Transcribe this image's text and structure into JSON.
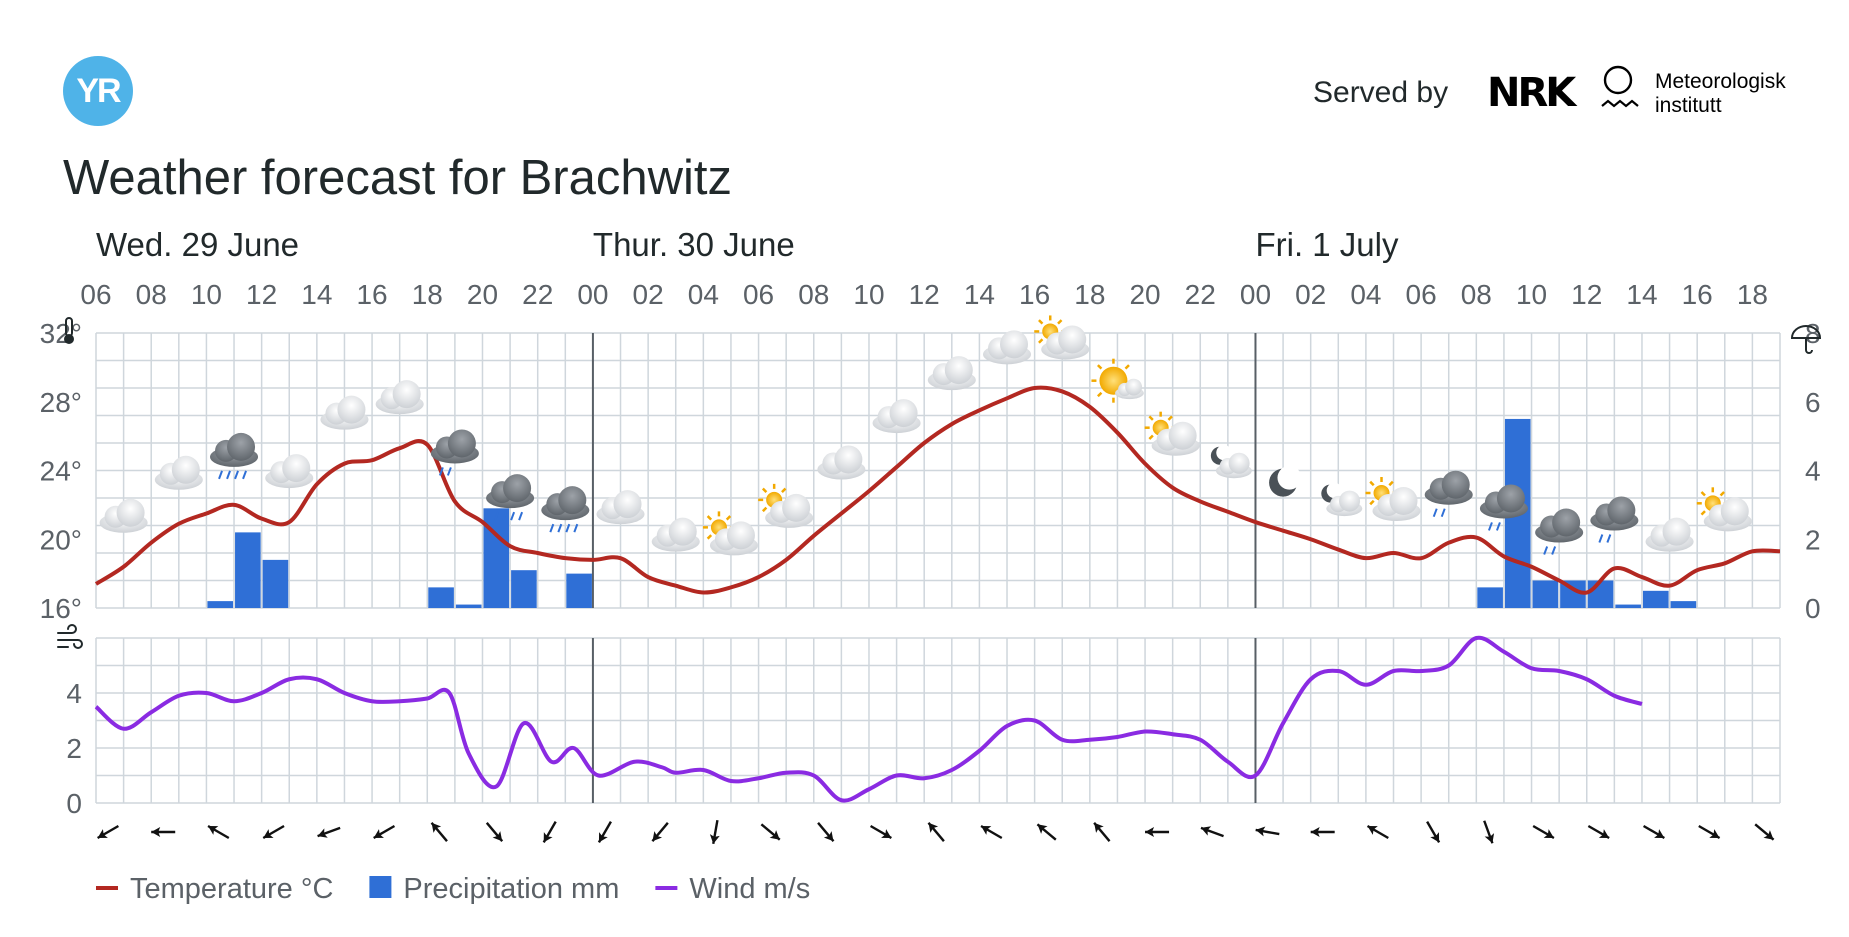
{
  "header": {
    "logo_text": "YR",
    "served_by": "Served by",
    "nrk_logo": "NRK",
    "met_name_line1": "Meteorologisk",
    "met_name_line2": "institutt",
    "title": "Weather forecast for Brachwitz"
  },
  "colors": {
    "temperature": "#b32821",
    "precipitation": "#2f6fd6",
    "wind": "#8a2be2",
    "grid": "#cfd6dc",
    "day_divider": "#585f66"
  },
  "legend": [
    {
      "name": "Temperature °C",
      "color": "#b32821",
      "shape": "line"
    },
    {
      "name": "Precipitation mm",
      "color": "#2f6fd6",
      "shape": "square"
    },
    {
      "name": "Wind m/s",
      "color": "#8a2be2",
      "shape": "line"
    }
  ],
  "chart_data": {
    "type": "line",
    "days": [
      {
        "label": "Wed. 29 June",
        "start_hour": 6
      },
      {
        "label": "Thur. 30 June",
        "start_hour": 24
      },
      {
        "label": "Fri. 1 July",
        "start_hour": 48
      }
    ],
    "x_ticks": [
      "06",
      "08",
      "10",
      "12",
      "14",
      "16",
      "18",
      "20",
      "22",
      "00",
      "02",
      "04",
      "06",
      "08",
      "10",
      "12",
      "14",
      "16",
      "18",
      "20",
      "22",
      "00",
      "02",
      "04",
      "06",
      "08",
      "10",
      "12",
      "14",
      "16",
      "18"
    ],
    "x_range_hours": [
      6,
      67
    ],
    "temperature": {
      "name": "Temperature °C",
      "ylim": [
        16,
        32
      ],
      "y_ticks": [
        "16°",
        "20°",
        "24°",
        "28°",
        "32°"
      ],
      "y_tick_values": [
        16,
        20,
        24,
        28,
        32
      ],
      "points": [
        [
          6,
          17.4
        ],
        [
          7,
          18.4
        ],
        [
          8,
          19.8
        ],
        [
          9,
          20.9
        ],
        [
          10,
          21.5
        ],
        [
          11,
          22.0
        ],
        [
          12,
          21.2
        ],
        [
          13,
          21.0
        ],
        [
          14,
          23.2
        ],
        [
          15,
          24.4
        ],
        [
          16,
          24.6
        ],
        [
          17,
          25.3
        ],
        [
          18,
          25.5
        ],
        [
          19,
          22.2
        ],
        [
          20,
          21.0
        ],
        [
          21,
          19.6
        ],
        [
          22,
          19.2
        ],
        [
          23,
          18.9
        ],
        [
          24,
          18.8
        ],
        [
          25,
          18.9
        ],
        [
          26,
          17.8
        ],
        [
          27,
          17.3
        ],
        [
          28,
          16.9
        ],
        [
          29,
          17.2
        ],
        [
          30,
          17.8
        ],
        [
          31,
          18.8
        ],
        [
          32,
          20.2
        ],
        [
          33,
          21.5
        ],
        [
          34,
          22.8
        ],
        [
          35,
          24.2
        ],
        [
          36,
          25.6
        ],
        [
          37,
          26.7
        ],
        [
          38,
          27.5
        ],
        [
          39,
          28.2
        ],
        [
          40,
          28.8
        ],
        [
          41,
          28.6
        ],
        [
          42,
          27.7
        ],
        [
          43,
          26.2
        ],
        [
          44,
          24.4
        ],
        [
          45,
          23.0
        ],
        [
          46,
          22.2
        ],
        [
          47,
          21.6
        ],
        [
          48,
          21.0
        ],
        [
          49,
          20.5
        ],
        [
          50,
          20.0
        ],
        [
          51,
          19.4
        ],
        [
          52,
          18.9
        ],
        [
          53,
          19.2
        ],
        [
          54,
          18.9
        ],
        [
          55,
          19.8
        ],
        [
          56,
          20.1
        ],
        [
          57,
          19.0
        ],
        [
          58,
          18.4
        ],
        [
          59,
          17.6
        ],
        [
          60,
          16.9
        ],
        [
          61,
          18.3
        ],
        [
          62,
          17.8
        ],
        [
          63,
          17.3
        ],
        [
          64,
          18.2
        ],
        [
          65,
          18.6
        ],
        [
          66,
          19.3
        ],
        [
          67,
          19.3
        ]
      ]
    },
    "precipitation": {
      "name": "Precipitation mm",
      "ylim": [
        0,
        8
      ],
      "y_ticks": [
        "0",
        "2",
        "4",
        "6",
        "8"
      ],
      "y_tick_values": [
        0,
        2,
        4,
        6,
        8
      ],
      "bars": [
        [
          10,
          0.2
        ],
        [
          11,
          2.2
        ],
        [
          12,
          1.4
        ],
        [
          18,
          0.6
        ],
        [
          19,
          0.1
        ],
        [
          20,
          2.9
        ],
        [
          21,
          1.1
        ],
        [
          23,
          1.0
        ],
        [
          56,
          0.6
        ],
        [
          57,
          5.5
        ],
        [
          58,
          0.8
        ],
        [
          59,
          0.8
        ],
        [
          60,
          0.8
        ],
        [
          61,
          0.1
        ],
        [
          62,
          0.5
        ],
        [
          63,
          0.2
        ]
      ]
    },
    "wind": {
      "name": "Wind m/s",
      "ylim": [
        0,
        6
      ],
      "y_ticks": [
        "0",
        "2",
        "4"
      ],
      "y_tick_values": [
        0,
        2,
        4
      ],
      "points": [
        [
          6,
          3.5
        ],
        [
          7,
          2.7
        ],
        [
          8,
          3.3
        ],
        [
          9,
          3.9
        ],
        [
          10,
          4.0
        ],
        [
          11,
          3.7
        ],
        [
          12,
          4.0
        ],
        [
          13,
          4.5
        ],
        [
          14,
          4.5
        ],
        [
          15,
          4.0
        ],
        [
          16,
          3.7
        ],
        [
          17,
          3.7
        ],
        [
          18,
          3.8
        ],
        [
          18.8,
          4.0
        ],
        [
          19.5,
          1.8
        ],
        [
          20.5,
          0.6
        ],
        [
          21.5,
          2.9
        ],
        [
          22.5,
          1.5
        ],
        [
          23.3,
          2.0
        ],
        [
          24.2,
          1.0
        ],
        [
          25.5,
          1.5
        ],
        [
          26.5,
          1.3
        ],
        [
          27,
          1.1
        ],
        [
          28,
          1.2
        ],
        [
          29,
          0.8
        ],
        [
          30,
          0.9
        ],
        [
          31,
          1.1
        ],
        [
          32,
          1.0
        ],
        [
          33,
          0.1
        ],
        [
          34,
          0.5
        ],
        [
          35,
          1.0
        ],
        [
          36,
          0.9
        ],
        [
          37,
          1.2
        ],
        [
          38,
          1.9
        ],
        [
          39,
          2.8
        ],
        [
          40,
          3.0
        ],
        [
          41,
          2.3
        ],
        [
          42,
          2.3
        ],
        [
          43,
          2.4
        ],
        [
          44,
          2.6
        ],
        [
          45,
          2.5
        ],
        [
          46,
          2.3
        ],
        [
          47,
          1.5
        ],
        [
          48,
          1.0
        ],
        [
          49,
          2.9
        ],
        [
          50,
          4.5
        ],
        [
          51,
          4.8
        ],
        [
          52,
          4.3
        ],
        [
          53,
          4.8
        ],
        [
          54,
          4.8
        ],
        [
          55,
          5.0
        ],
        [
          56,
          6.0
        ],
        [
          57,
          5.5
        ],
        [
          58,
          4.9
        ],
        [
          59,
          4.8
        ],
        [
          60,
          4.5
        ],
        [
          61,
          3.9
        ],
        [
          62,
          3.6
        ]
      ],
      "direction_arrows_deg": [
        240,
        270,
        300,
        240,
        250,
        240,
        320,
        140,
        210,
        210,
        220,
        190,
        130,
        140,
        120,
        320,
        300,
        310,
        320,
        270,
        290,
        280,
        270,
        300,
        150,
        160,
        120,
        120,
        120,
        120,
        130
      ]
    },
    "weather_symbols": [
      {
        "hour": 7,
        "type": "cloud"
      },
      {
        "hour": 9,
        "type": "cloud"
      },
      {
        "hour": 11,
        "type": "rain-heavy"
      },
      {
        "hour": 13,
        "type": "cloud"
      },
      {
        "hour": 15,
        "type": "cloud"
      },
      {
        "hour": 17,
        "type": "cloud"
      },
      {
        "hour": 19,
        "type": "rain-light"
      },
      {
        "hour": 21,
        "type": "rain-heavy"
      },
      {
        "hour": 23,
        "type": "rain-heavy"
      },
      {
        "hour": 25,
        "type": "cloud"
      },
      {
        "hour": 27,
        "type": "cloud"
      },
      {
        "hour": 29,
        "type": "partly-sunny"
      },
      {
        "hour": 31,
        "type": "partly-sunny"
      },
      {
        "hour": 33,
        "type": "cloud"
      },
      {
        "hour": 35,
        "type": "cloud"
      },
      {
        "hour": 37,
        "type": "cloud"
      },
      {
        "hour": 39,
        "type": "cloud"
      },
      {
        "hour": 41,
        "type": "partly-sunny"
      },
      {
        "hour": 43,
        "type": "fair-sun"
      },
      {
        "hour": 45,
        "type": "partly-sunny"
      },
      {
        "hour": 47,
        "type": "night-cloud"
      },
      {
        "hour": 49,
        "type": "moon"
      },
      {
        "hour": 51,
        "type": "night-cloud"
      },
      {
        "hour": 53,
        "type": "partly-sunny"
      },
      {
        "hour": 55,
        "type": "rain-light"
      },
      {
        "hour": 57,
        "type": "rain-light"
      },
      {
        "hour": 59,
        "type": "rain-light"
      },
      {
        "hour": 61,
        "type": "rain-light"
      },
      {
        "hour": 63,
        "type": "cloud"
      },
      {
        "hour": 65,
        "type": "partly-sunny"
      }
    ]
  }
}
